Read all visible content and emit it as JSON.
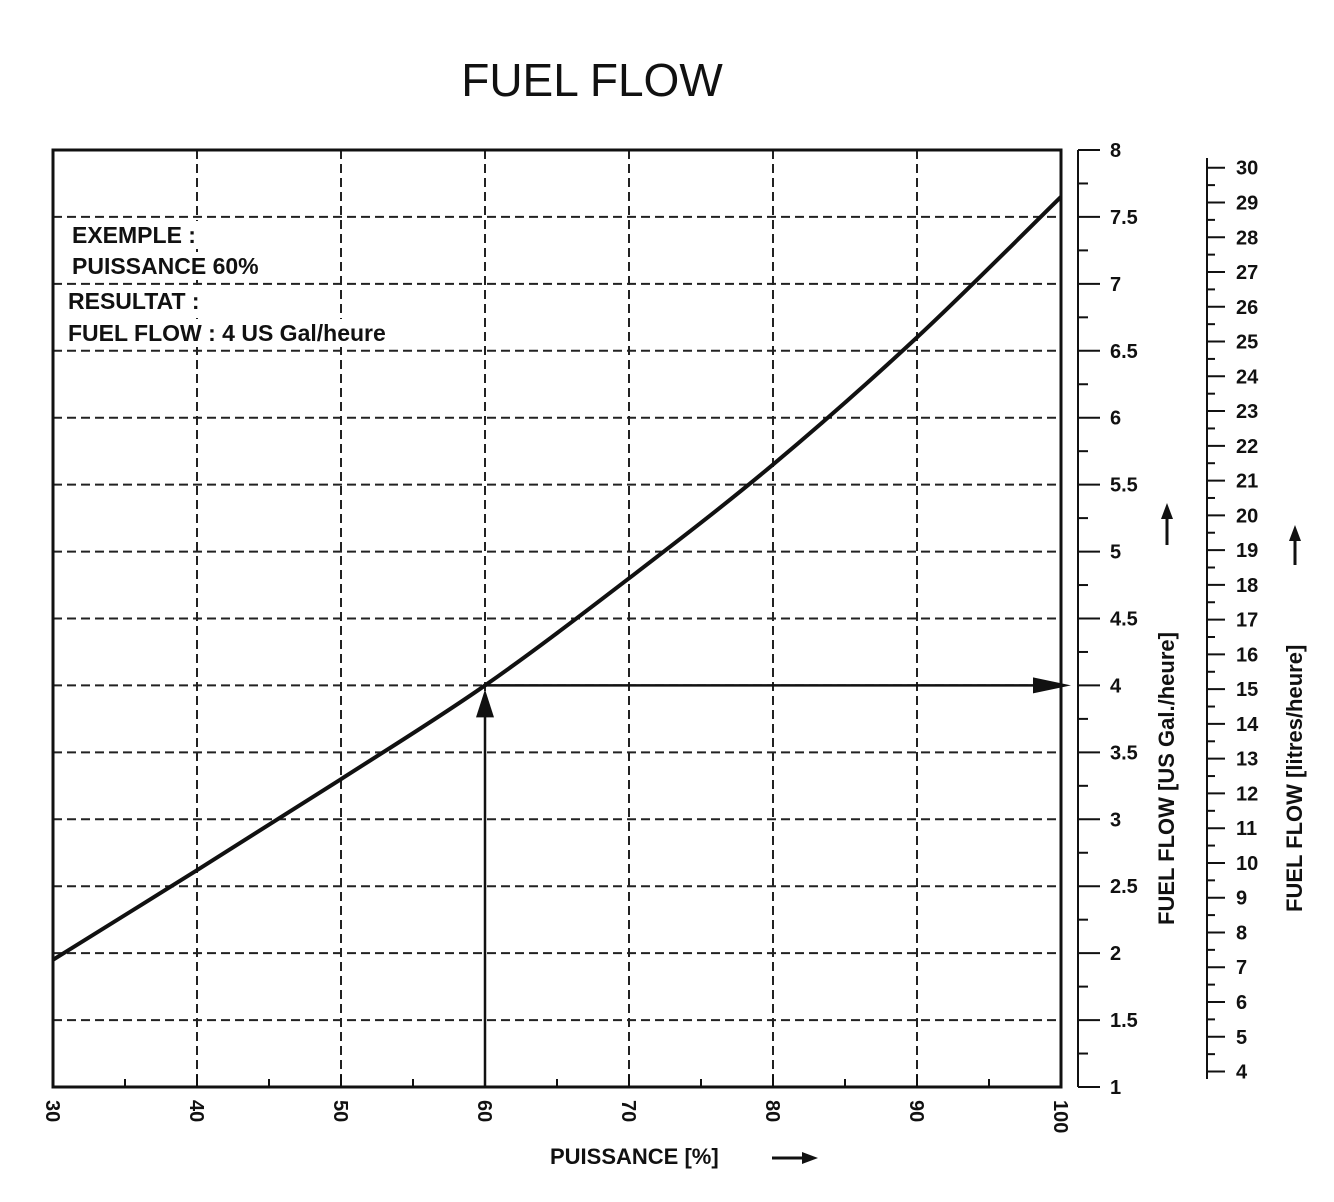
{
  "chart_data": {
    "type": "line",
    "title": "FUEL FLOW",
    "xlabel": "PUISSANCE [%]",
    "ylabel": "FUEL FLOW [US Gal./heure]",
    "y2label": "FUEL FLOW [litres/heure]",
    "xlim": [
      30,
      100
    ],
    "ylim": [
      1,
      8
    ],
    "y2lim": [
      3.785,
      30.28
    ],
    "x_ticks": [
      "30",
      "40",
      "50",
      "60",
      "70",
      "80",
      "90",
      "100"
    ],
    "y_ticks": [
      "1",
      "1.5",
      "2",
      "2.5",
      "3",
      "3.5",
      "4",
      "4.5",
      "5",
      "5.5",
      "6",
      "6.5",
      "7",
      "7.5",
      "8"
    ],
    "y2_ticks": [
      "4",
      "5",
      "6",
      "7",
      "8",
      "9",
      "10",
      "11",
      "12",
      "13",
      "14",
      "15",
      "16",
      "17",
      "18",
      "19",
      "20",
      "21",
      "22",
      "23",
      "24",
      "25",
      "26",
      "27",
      "28",
      "29",
      "30"
    ],
    "grid": true,
    "series": [
      {
        "x": [
          30,
          40,
          50,
          60,
          70,
          80,
          90,
          100
        ],
        "y": [
          1.95,
          2.62,
          3.3,
          4.0,
          4.8,
          5.65,
          6.6,
          7.65
        ]
      }
    ],
    "example": {
      "x": 60,
      "y": 4
    },
    "annotations": [
      "EXEMPLE :",
      "PUISSANCE 60%",
      "RESULTAT :",
      "FUEL FLOW : 4 US Gal/heure"
    ]
  }
}
